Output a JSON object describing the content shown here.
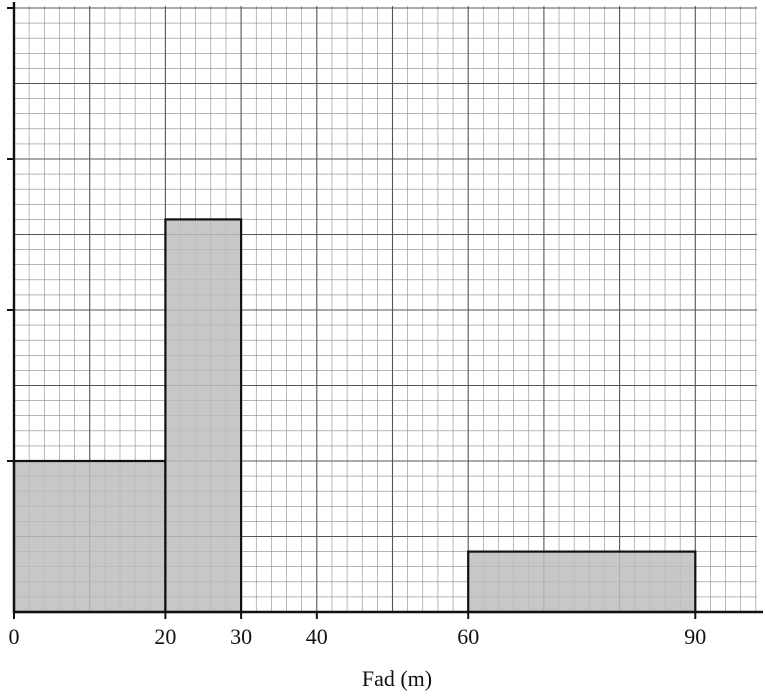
{
  "chart_data": {
    "type": "bar",
    "title": "",
    "xlabel": "Fad (m)",
    "ylabel": "",
    "xticks": [
      0,
      20,
      30,
      40,
      60,
      90
    ],
    "xlim": [
      0,
      99
    ],
    "ylim": [
      0,
      4
    ],
    "yticks_labeled": [],
    "grid": true,
    "bars": [
      {
        "x0": 0,
        "x1": 20,
        "height": 1.0
      },
      {
        "x0": 20,
        "x1": 30,
        "height": 2.6
      },
      {
        "x0": 60,
        "x1": 90,
        "height": 0.4
      }
    ],
    "colors": {
      "bar_fill": "#bdbdc0",
      "bar_stroke": "#111111",
      "grid_minor": "#8a8a8a",
      "grid_major": "#555555",
      "axis": "#111111"
    }
  }
}
